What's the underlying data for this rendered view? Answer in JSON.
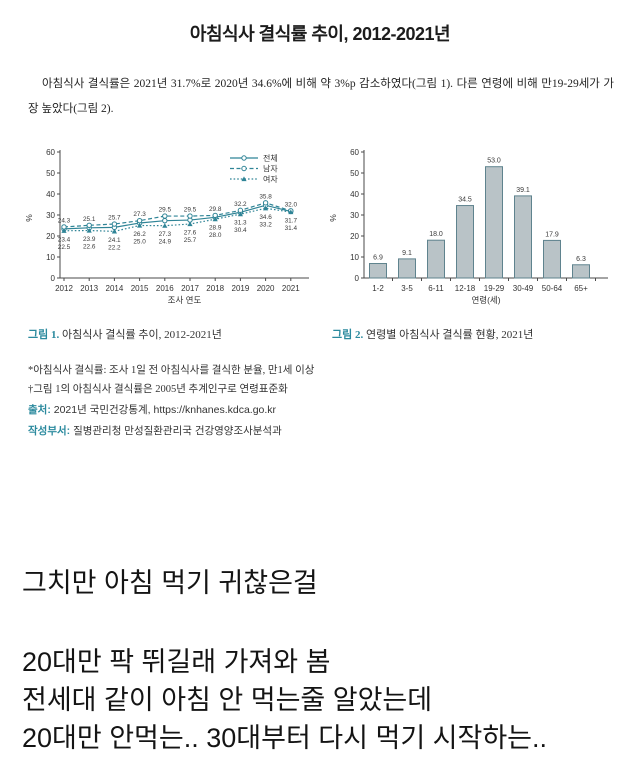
{
  "colors": {
    "accent_teal": "#2b8a9e",
    "chart_line_teal": "#2f8496",
    "bar_fill": "#b9c3c7",
    "bar_stroke": "#5f838e",
    "axis": "#4a4a4a",
    "comment_text": "#141414"
  },
  "doc": {
    "title": "아침식사 결식률 추이, 2012-2021년",
    "paragraph": "아침식사 결식률은 2021년 31.7%로 2020년 34.6%에 비해 약 3%p 감소하였다(그림 1). 다른 연령에 비해 만19-29세가 가장 높았다(그림 2).",
    "captions": {
      "fig1_label": "그림 1.",
      "fig1_text": "아침식사 결식률 추이, 2012-2021년",
      "fig2_label": "그림 2.",
      "fig2_text": "연령별 아침식사 결식률 현황, 2021년"
    },
    "footnotes": [
      "*아침식사 결식률: 조사 1일 전 아침식사를 결식한 분율, 만1세 이상",
      "†그림 1의 아침식사 결식률은 2005년 추계인구로 연령표준화"
    ],
    "source": {
      "label": "출처:",
      "text": "2021년 국민건강통계, https://knhanes.kdca.go.kr"
    },
    "dept": {
      "label": "작성부서:",
      "text": "질병관리청 만성질환관리국 건강영양조사분석과"
    }
  },
  "comments": {
    "line1": "그치만 아침 먹기 귀찮은걸",
    "line2": "20대만 팍 뛰길래 가져와 봄",
    "line3": "전세대 같이 아침 안 먹는줄 알았는데",
    "line4": "20대만 안먹는.. 30대부터 다시 먹기 시작하는.."
  },
  "chart_data": [
    {
      "type": "line",
      "title": "그림 1. 아침식사 결식률 추이, 2012-2021년",
      "x": [
        "2012",
        "2013",
        "2014",
        "2015",
        "2016",
        "2017",
        "2018",
        "2019",
        "2020",
        "2021"
      ],
      "xlabel": "조사 연도",
      "ylabel": "%",
      "ylim": [
        0,
        60
      ],
      "yticks": [
        0,
        10,
        20,
        30,
        40,
        50,
        60
      ],
      "grid": false,
      "legend_position": "top-right",
      "line_color": "#2f8496",
      "series": [
        {
          "name": "전체",
          "line_style": "solid",
          "marker": "circle",
          "label_pos": "below-1",
          "values": [
            23.4,
            23.9,
            24.1,
            26.2,
            27.3,
            27.6,
            28.9,
            31.3,
            34.6,
            31.7
          ],
          "labels": [
            "23.4",
            "23.9",
            "24.1",
            "26.2",
            "27.3",
            "27.6",
            "28.9",
            "31.3",
            "34.6",
            "31.7"
          ]
        },
        {
          "name": "남자",
          "line_style": "dashed",
          "marker": "circle",
          "label_pos": "above",
          "values": [
            24.3,
            25.1,
            25.7,
            27.3,
            29.5,
            29.5,
            29.8,
            32.2,
            35.8,
            32.0
          ],
          "labels": [
            "24.3",
            "25.1",
            "25.7",
            "27.3",
            "29.5",
            "29.5",
            "29.8",
            "32.2",
            "35.8",
            "32.0"
          ]
        },
        {
          "name": "여자",
          "line_style": "dotted",
          "marker": "triangle",
          "label_pos": "below-2",
          "values": [
            22.5,
            22.6,
            22.2,
            25.0,
            24.9,
            25.7,
            28.0,
            30.4,
            33.2,
            31.4
          ],
          "labels": [
            "22.5",
            "22.6",
            "22.2",
            "25.0",
            "24.9",
            "25.7",
            "28.0",
            "30.4",
            "33.2",
            "31.4"
          ]
        }
      ]
    },
    {
      "type": "bar",
      "title": "그림 2. 연령별 아침식사 결식률 현황, 2021년",
      "categories": [
        "1-2",
        "3-5",
        "6-11",
        "12-18",
        "19-29",
        "30-49",
        "50-64",
        "65+"
      ],
      "values": [
        6.9,
        9.1,
        18.0,
        34.5,
        53.0,
        39.1,
        17.9,
        6.3
      ],
      "labels": [
        "6.9",
        "9.1",
        "18.0",
        "34.5",
        "53.0",
        "39.1",
        "17.9",
        "6.3"
      ],
      "xlabel": "연령(세)",
      "ylabel": "%",
      "ylim": [
        0,
        60
      ],
      "yticks": [
        0,
        10,
        20,
        30,
        40,
        50,
        60
      ],
      "grid": false,
      "bar_fill": "#b9c3c7",
      "bar_stroke": "#5f838e"
    }
  ]
}
